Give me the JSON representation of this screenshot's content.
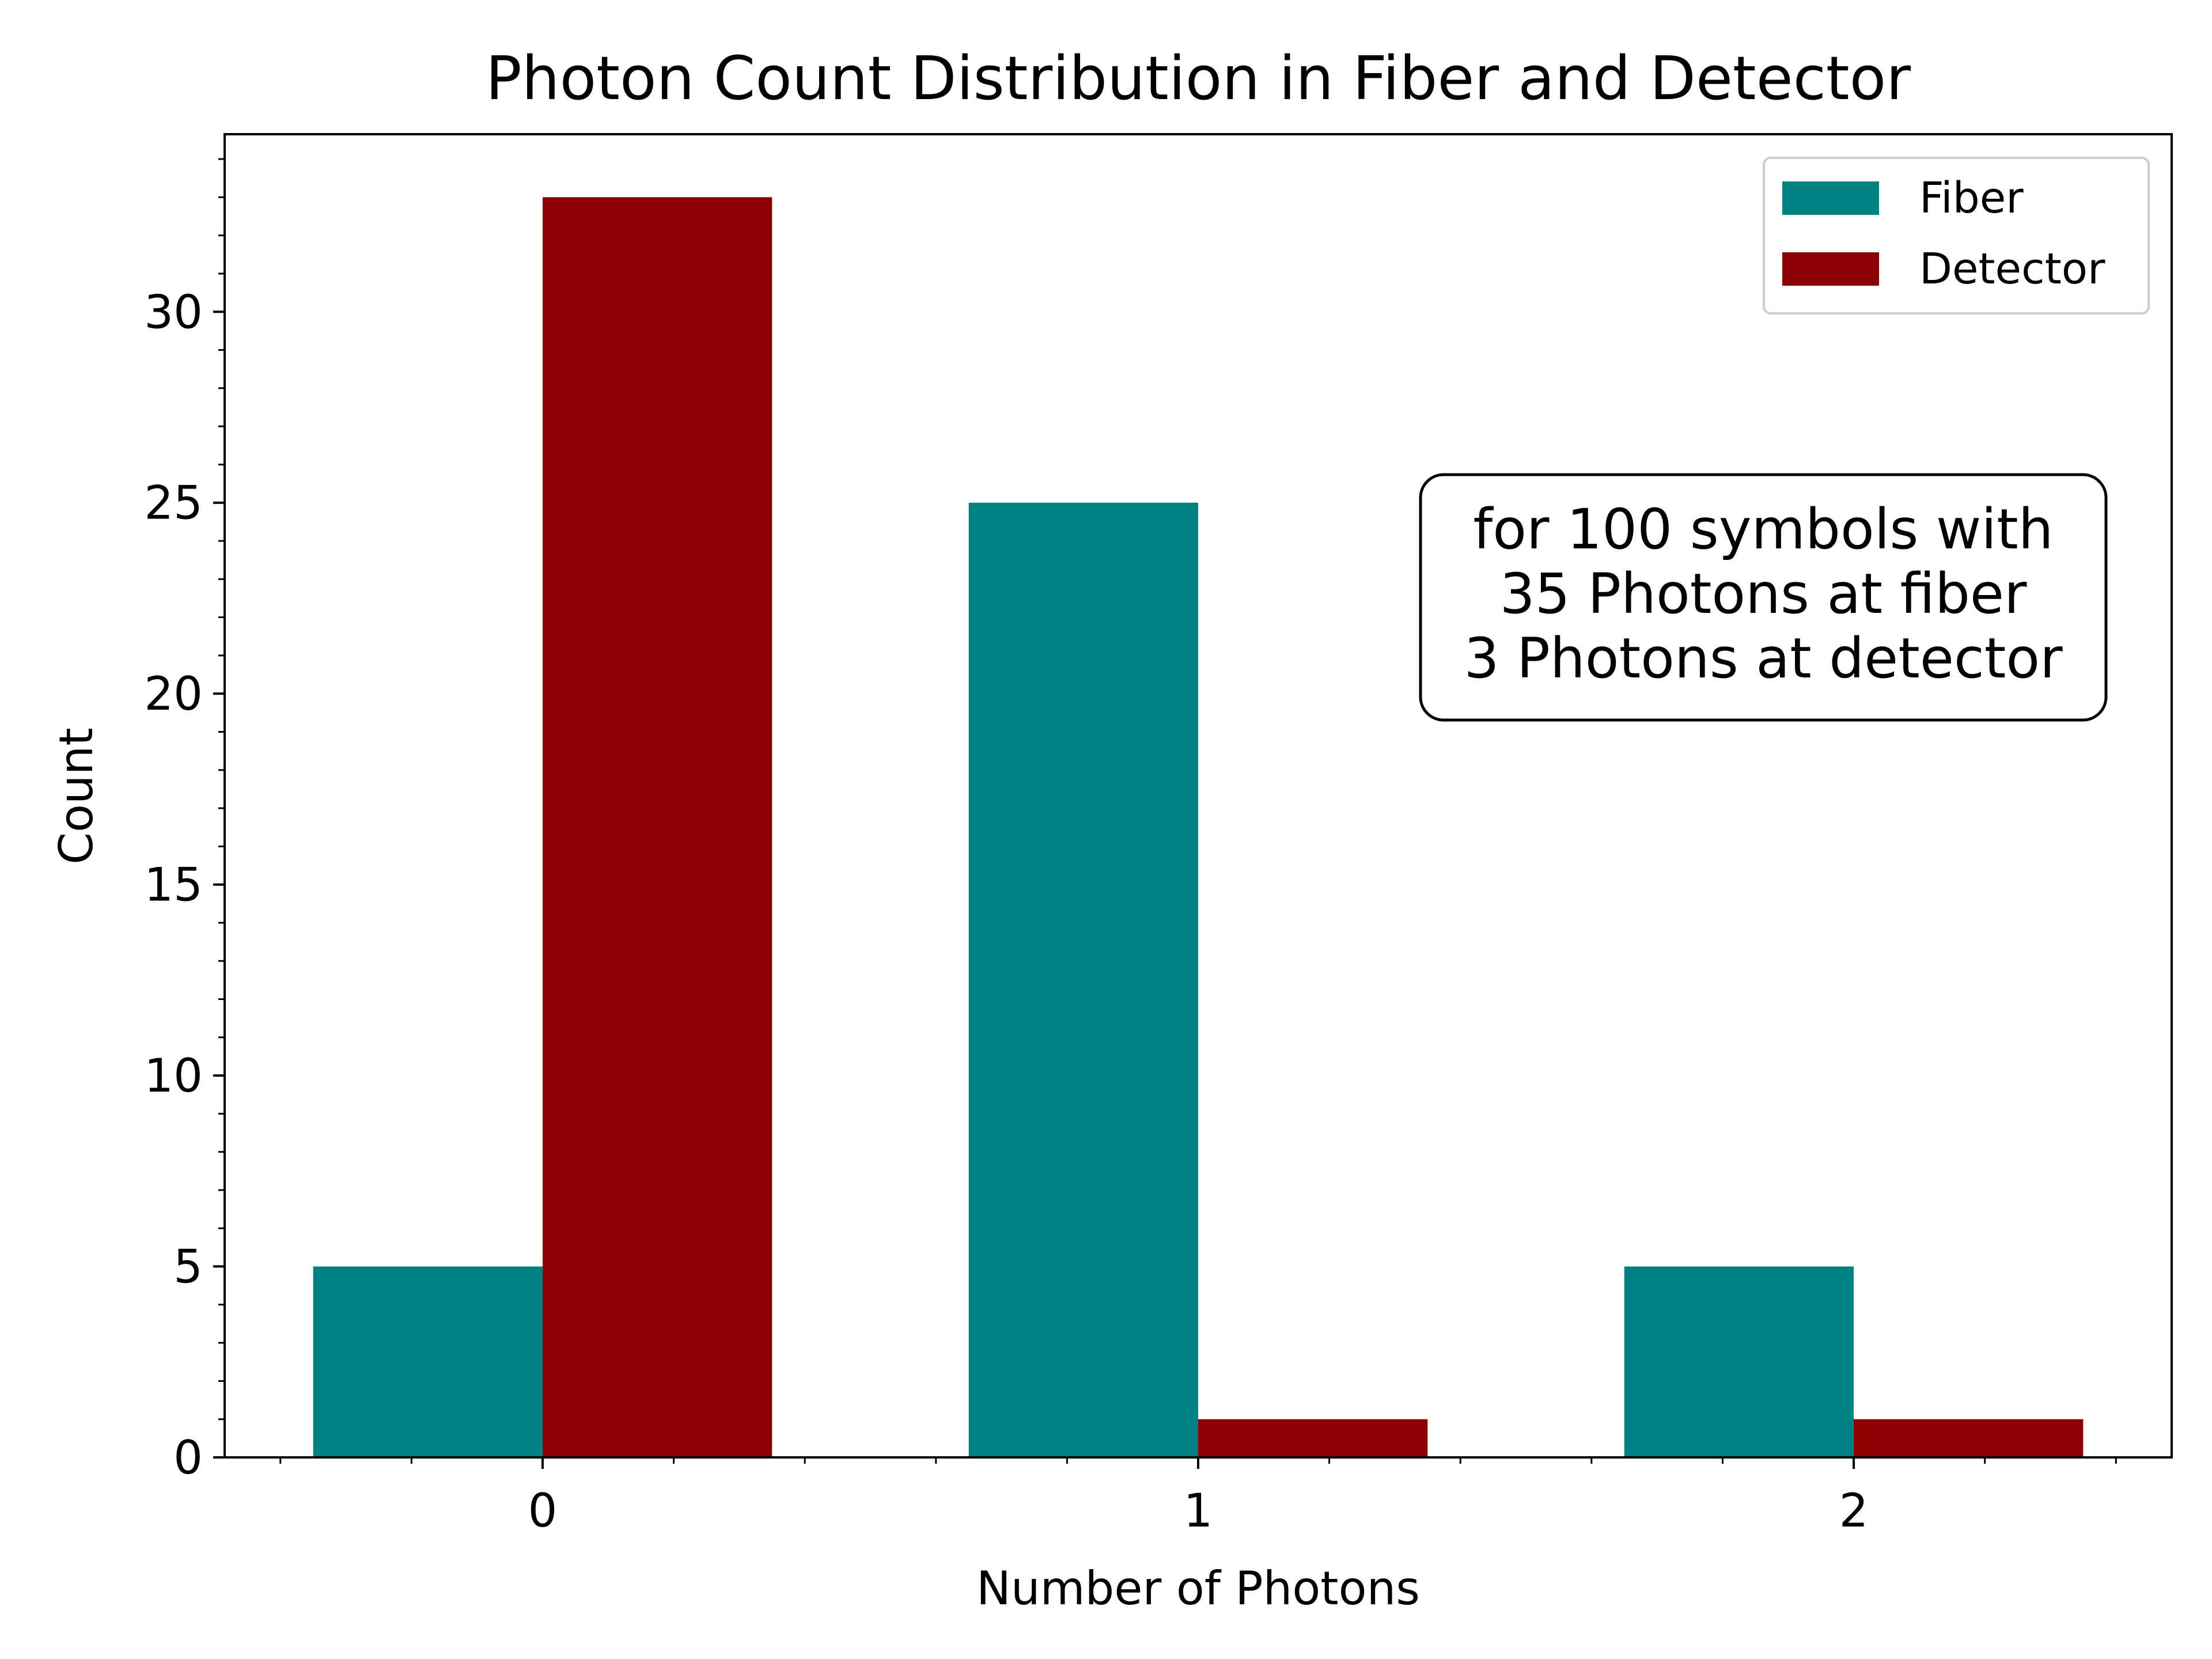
{
  "chart_data": {
    "type": "bar",
    "title": "Photon Count Distribution in Fiber and Detector",
    "xlabel": "Number of Photons",
    "ylabel": "Count",
    "categories": [
      "0",
      "1",
      "2"
    ],
    "series": [
      {
        "name": "Fiber",
        "color": "#008080",
        "values": [
          5,
          25,
          5
        ]
      },
      {
        "name": "Detector",
        "color": "#8b0000",
        "values": [
          33,
          1,
          1
        ]
      }
    ],
    "ylim": [
      0,
      34.65
    ],
    "xlim": [
      -0.485,
      2.485
    ],
    "yticks": [
      0,
      5,
      10,
      15,
      20,
      25,
      30
    ],
    "xticks": [
      0,
      1,
      2
    ],
    "x_minor_step": 0.2,
    "y_minor_step": 1,
    "bar_width": 0.35,
    "grid": false,
    "legend_position": "top-right",
    "annotation": {
      "lines": [
        "for 100 symbols with",
        "35 Photons at fiber",
        "3 Photons at detector"
      ]
    }
  }
}
